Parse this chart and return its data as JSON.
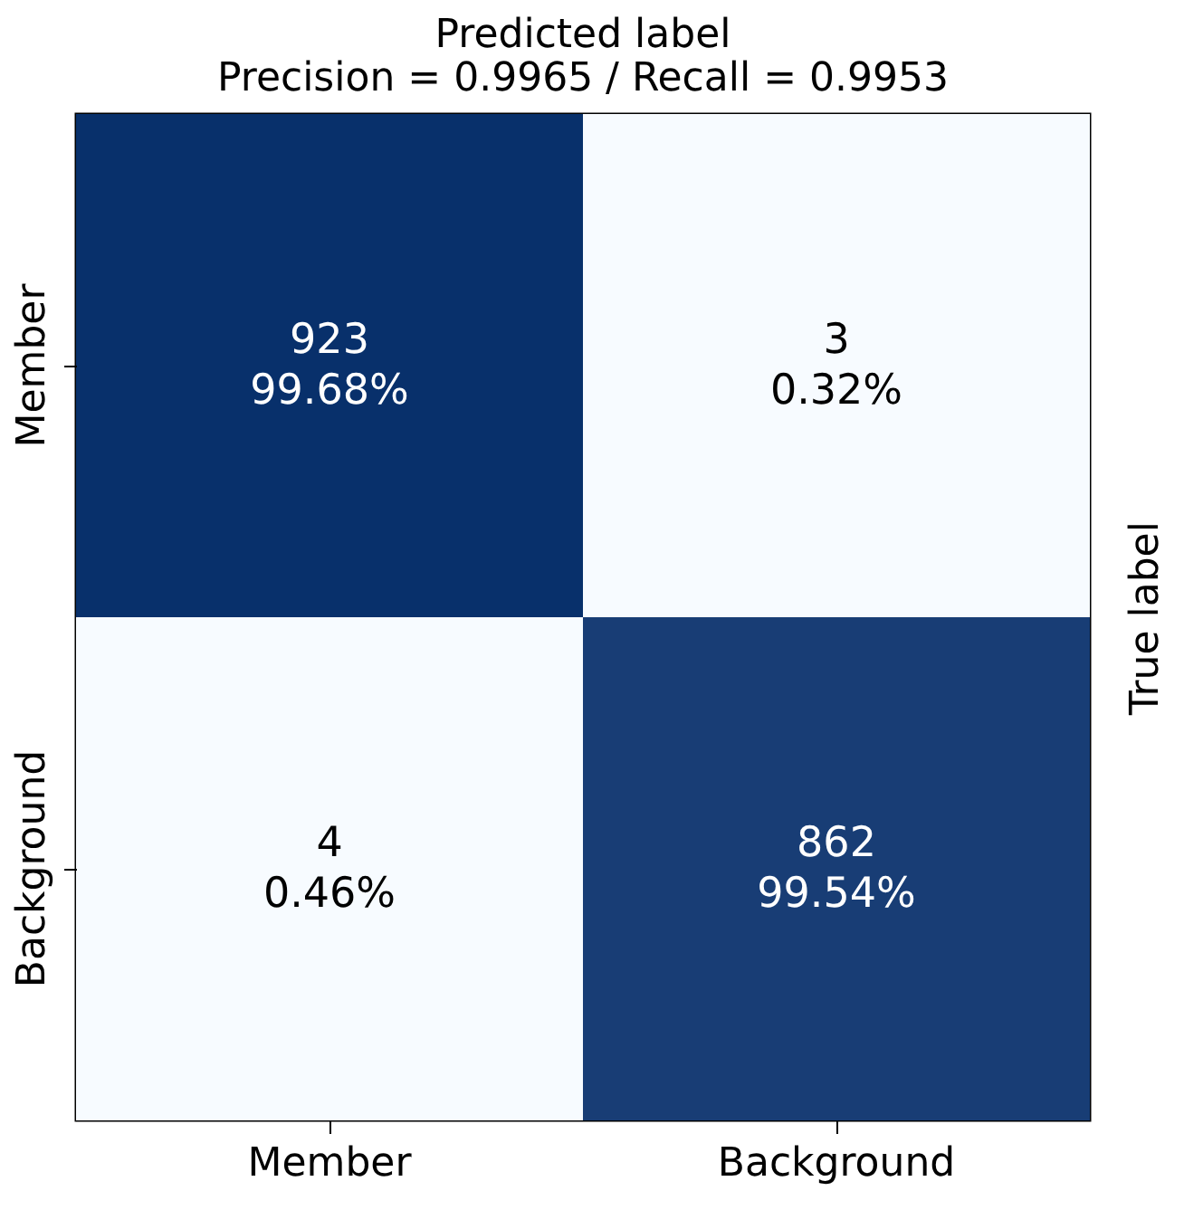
{
  "chart_data": {
    "type": "heatmap",
    "title": "Predicted label",
    "subtitle": "Precision = 0.9965 / Recall = 0.9953",
    "ylabel": "True label",
    "categories": [
      "Member",
      "Background"
    ],
    "y_categories": [
      "Member",
      "Background"
    ],
    "cells": [
      [
        923,
        3
      ],
      [
        4,
        862
      ]
    ],
    "data_labels": true,
    "annotations": [
      "99.68%",
      "0.32%",
      "0.46%",
      "99.54%"
    ]
  }
}
